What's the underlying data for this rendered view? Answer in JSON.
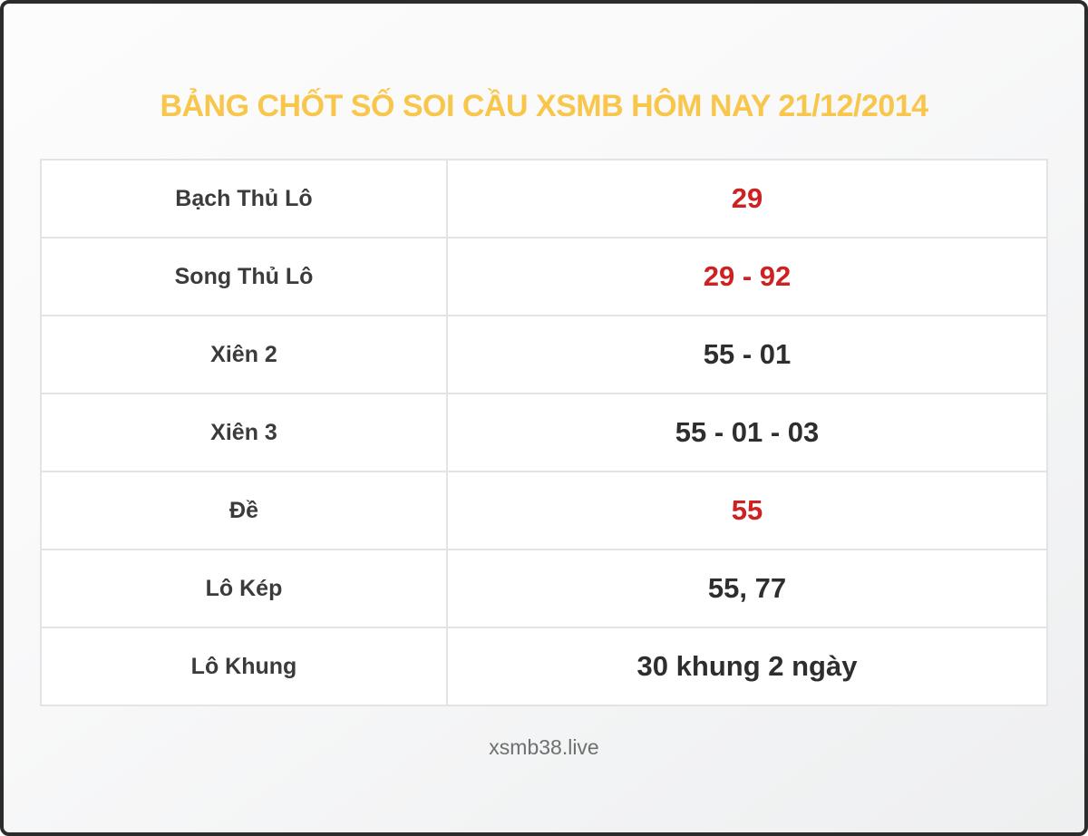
{
  "page": {
    "title": "BẢNG CHỐT SỐ SOI CẦU XSMB HÔM NAY 21/12/2014",
    "footer": "xsmb38.live"
  },
  "colors": {
    "title_yellow": "#f8c64b",
    "value_red": "#cd2122",
    "value_dark": "#2e2e2e",
    "label_dark": "#3b3b3b",
    "cell_border": "#e4e4e6",
    "page_border": "#2b2b2b",
    "footer_gray": "#6f6f6f",
    "cell_background": "#ffffff"
  },
  "table": {
    "rows": [
      {
        "label": "Bạch Thủ Lô",
        "value": "29",
        "highlight": true
      },
      {
        "label": "Song Thủ Lô",
        "value": "29 - 92",
        "highlight": true
      },
      {
        "label": "Xiên 2",
        "value": "55 - 01",
        "highlight": false
      },
      {
        "label": "Xiên 3",
        "value": "55 - 01 - 03",
        "highlight": false
      },
      {
        "label": "Đề",
        "value": "55",
        "highlight": true
      },
      {
        "label": "Lô Kép",
        "value": "55, 77",
        "highlight": false
      },
      {
        "label": "Lô Khung",
        "value": "30 khung 2 ngày",
        "highlight": false
      }
    ]
  }
}
